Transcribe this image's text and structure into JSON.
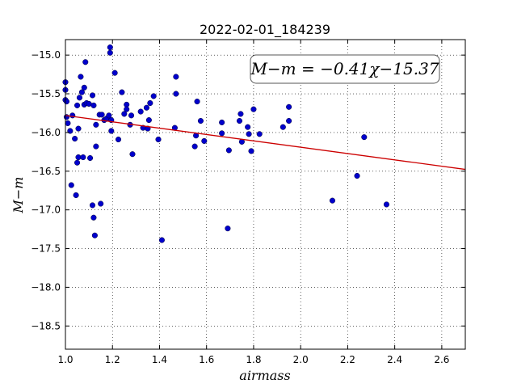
{
  "chart_data": {
    "type": "scatter",
    "title": "2022-02-01_184239",
    "xlabel": "airmass",
    "ylabel": "M−m",
    "xlim": [
      1.0,
      2.7
    ],
    "ylim": [
      -18.8,
      -14.8
    ],
    "x_ticks": [
      1.0,
      1.2,
      1.4,
      1.6,
      1.8,
      2.0,
      2.2,
      2.4,
      2.6
    ],
    "x_tick_labels": [
      "1.0",
      "1.2",
      "1.4",
      "1.6",
      "1.8",
      "2.0",
      "2.2",
      "2.4",
      "2.6"
    ],
    "y_ticks": [
      -15.0,
      -15.5,
      -16.0,
      -16.5,
      -17.0,
      -17.5,
      -18.0,
      -18.5
    ],
    "y_tick_labels": [
      "−15.0",
      "−15.5",
      "−16.0",
      "−16.5",
      "−17.0",
      "−17.5",
      "−18.0",
      "−18.5"
    ],
    "grid": true,
    "point_color": "#0000cc",
    "line_color": "#cc0000",
    "annotation": "M−m = −0.41χ−15.37",
    "fit": {
      "slope": -0.41,
      "intercept": -15.37
    },
    "points": [
      [
        1.0,
        -15.35
      ],
      [
        1.0,
        -15.45
      ],
      [
        1.0,
        -15.58
      ],
      [
        1.005,
        -15.6
      ],
      [
        1.005,
        -15.8
      ],
      [
        1.01,
        -15.88
      ],
      [
        1.02,
        -15.98
      ],
      [
        1.025,
        -16.68
      ],
      [
        1.03,
        -15.78
      ],
      [
        1.04,
        -16.08
      ],
      [
        1.045,
        -16.81
      ],
      [
        1.05,
        -15.65
      ],
      [
        1.05,
        -16.39
      ],
      [
        1.055,
        -16.32
      ],
      [
        1.055,
        -15.95
      ],
      [
        1.06,
        -15.55
      ],
      [
        1.065,
        -15.28
      ],
      [
        1.07,
        -15.48
      ],
      [
        1.075,
        -16.32
      ],
      [
        1.08,
        -15.42
      ],
      [
        1.08,
        -15.64
      ],
      [
        1.085,
        -15.09
      ],
      [
        1.09,
        -15.62
      ],
      [
        1.1,
        -15.63
      ],
      [
        1.105,
        -16.33
      ],
      [
        1.115,
        -16.94
      ],
      [
        1.115,
        -15.52
      ],
      [
        1.12,
        -15.65
      ],
      [
        1.12,
        -17.1
      ],
      [
        1.125,
        -17.33
      ],
      [
        1.13,
        -16.18
      ],
      [
        1.13,
        -15.9
      ],
      [
        1.145,
        -15.77
      ],
      [
        1.15,
        -16.92
      ],
      [
        1.155,
        -15.77
      ],
      [
        1.165,
        -15.84
      ],
      [
        1.175,
        -15.82
      ],
      [
        1.185,
        -15.78
      ],
      [
        1.19,
        -14.9
      ],
      [
        1.19,
        -14.97
      ],
      [
        1.195,
        -15.84
      ],
      [
        1.195,
        -15.98
      ],
      [
        1.21,
        -15.23
      ],
      [
        1.225,
        -16.09
      ],
      [
        1.24,
        -15.48
      ],
      [
        1.25,
        -15.76
      ],
      [
        1.26,
        -15.64
      ],
      [
        1.26,
        -15.7
      ],
      [
        1.275,
        -15.9
      ],
      [
        1.28,
        -15.78
      ],
      [
        1.285,
        -16.28
      ],
      [
        1.32,
        -15.73
      ],
      [
        1.33,
        -15.94
      ],
      [
        1.345,
        -15.68
      ],
      [
        1.35,
        -15.95
      ],
      [
        1.355,
        -15.84
      ],
      [
        1.36,
        -15.62
      ],
      [
        1.375,
        -15.53
      ],
      [
        1.395,
        -16.09
      ],
      [
        1.41,
        -17.39
      ],
      [
        1.465,
        -15.94
      ],
      [
        1.47,
        -15.28
      ],
      [
        1.47,
        -15.5
      ],
      [
        1.55,
        -16.18
      ],
      [
        1.555,
        -16.04
      ],
      [
        1.56,
        -15.6
      ],
      [
        1.575,
        -15.85
      ],
      [
        1.59,
        -16.11
      ],
      [
        1.665,
        -15.87
      ],
      [
        1.665,
        -16.01
      ],
      [
        1.69,
        -17.24
      ],
      [
        1.695,
        -16.23
      ],
      [
        1.74,
        -15.85
      ],
      [
        1.745,
        -15.76
      ],
      [
        1.75,
        -16.12
      ],
      [
        1.775,
        -15.93
      ],
      [
        1.78,
        -16.02
      ],
      [
        1.79,
        -16.24
      ],
      [
        1.8,
        -15.7
      ],
      [
        1.825,
        -16.02
      ],
      [
        1.925,
        -15.93
      ],
      [
        1.95,
        -15.85
      ],
      [
        1.95,
        -15.67
      ],
      [
        2.135,
        -16.88
      ],
      [
        2.24,
        -16.56
      ],
      [
        2.27,
        -16.06
      ],
      [
        2.365,
        -16.93
      ]
    ]
  }
}
